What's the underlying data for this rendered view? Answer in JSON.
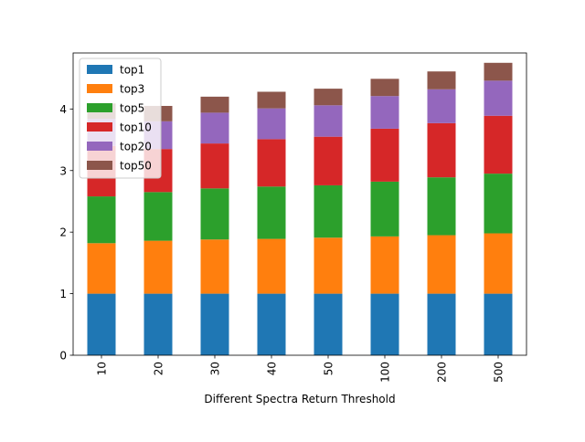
{
  "chart_data": {
    "type": "bar",
    "stacked": true,
    "xlabel": "Different Spectra Return Threshold",
    "ylabel": "",
    "title": "",
    "categories": [
      "10",
      "20",
      "30",
      "40",
      "50",
      "100",
      "200",
      "500"
    ],
    "ylim": [
      0,
      4.91
    ],
    "yticks": [
      0,
      1,
      2,
      3,
      4
    ],
    "ytick_labels": [
      "0",
      "1",
      "2",
      "3",
      "4"
    ],
    "legend_position": "upper-left",
    "grid": false,
    "series": [
      {
        "name": "top1",
        "color": "#1f77b4",
        "values": [
          1.0,
          1.0,
          1.0,
          1.0,
          1.0,
          1.0,
          1.0,
          1.0
        ]
      },
      {
        "name": "top3",
        "color": "#ff7f0e",
        "values": [
          0.82,
          0.86,
          0.88,
          0.89,
          0.91,
          0.93,
          0.95,
          0.98
        ]
      },
      {
        "name": "top5",
        "color": "#2ca02c",
        "values": [
          0.76,
          0.79,
          0.83,
          0.85,
          0.85,
          0.89,
          0.94,
          0.97
        ]
      },
      {
        "name": "top10",
        "color": "#d62728",
        "values": [
          0.82,
          0.7,
          0.73,
          0.77,
          0.79,
          0.86,
          0.88,
          0.94
        ]
      },
      {
        "name": "top20",
        "color": "#9467bd",
        "values": [
          0.44,
          0.45,
          0.5,
          0.5,
          0.51,
          0.53,
          0.55,
          0.57
        ]
      },
      {
        "name": "top50",
        "color": "#8c564b",
        "values": [
          0.25,
          0.25,
          0.26,
          0.27,
          0.27,
          0.28,
          0.29,
          0.29
        ]
      }
    ]
  }
}
